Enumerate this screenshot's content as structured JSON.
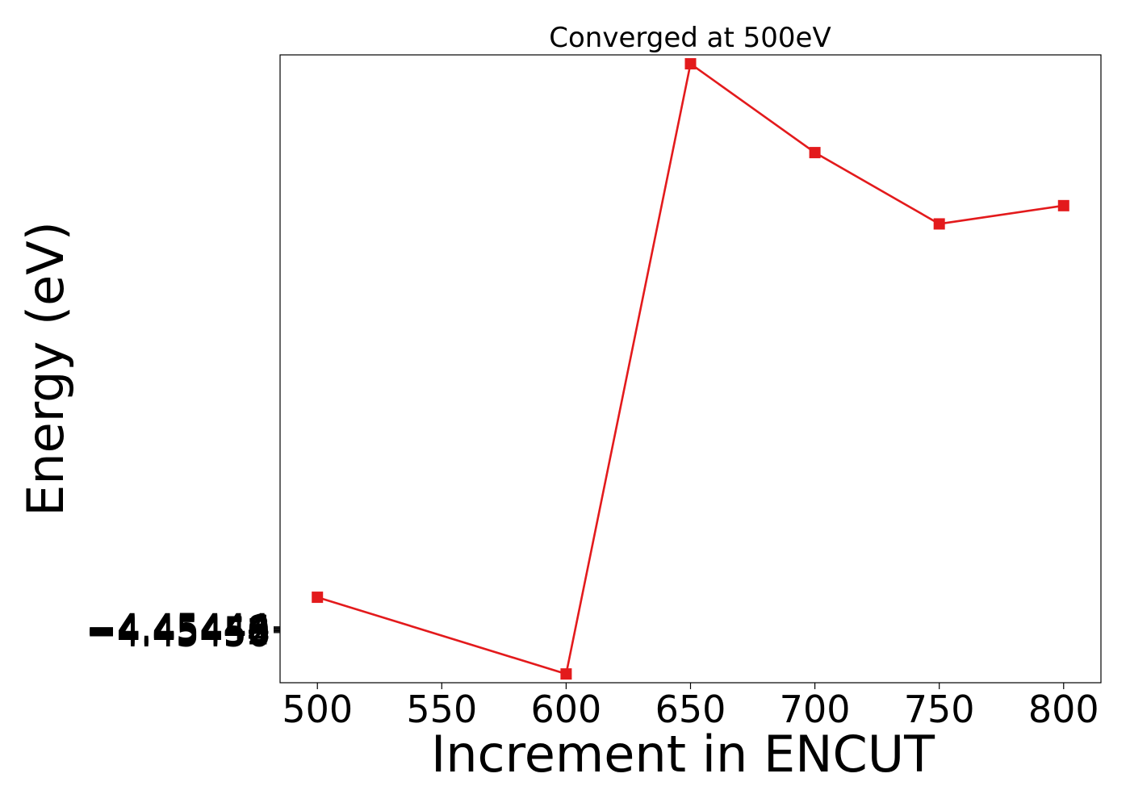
{
  "chart_data": {
    "type": "line",
    "title": "Converged at 500eV",
    "xlabel": "Increment in ENCUT",
    "ylabel": "Energy (eV)",
    "x": [
      500,
      600,
      650,
      700,
      750,
      800
    ],
    "series": [
      {
        "values": [
          -4.453826,
          -4.455418,
          -4.442755,
          -4.444598,
          -4.446078,
          -4.445699
        ],
        "color": "#e31a1c",
        "marker": "square"
      }
    ],
    "xlim": [
      485,
      815
    ],
    "ylim": [
      -4.4556,
      -4.44257
    ],
    "xticks": [
      500,
      550,
      600,
      650,
      700,
      750,
      800
    ],
    "yticks": [
      -4.45444,
      -4.45446,
      -4.45448,
      -4.4545,
      -4.45452,
      -4.45454,
      -4.45456
    ],
    "ytick_labels": [
      "−4.45444",
      "−4.45446",
      "−4.45448",
      "−4.45450",
      "−4.45452",
      "−4.45454",
      "−4.45456"
    ],
    "grid": false,
    "legend": "none"
  }
}
